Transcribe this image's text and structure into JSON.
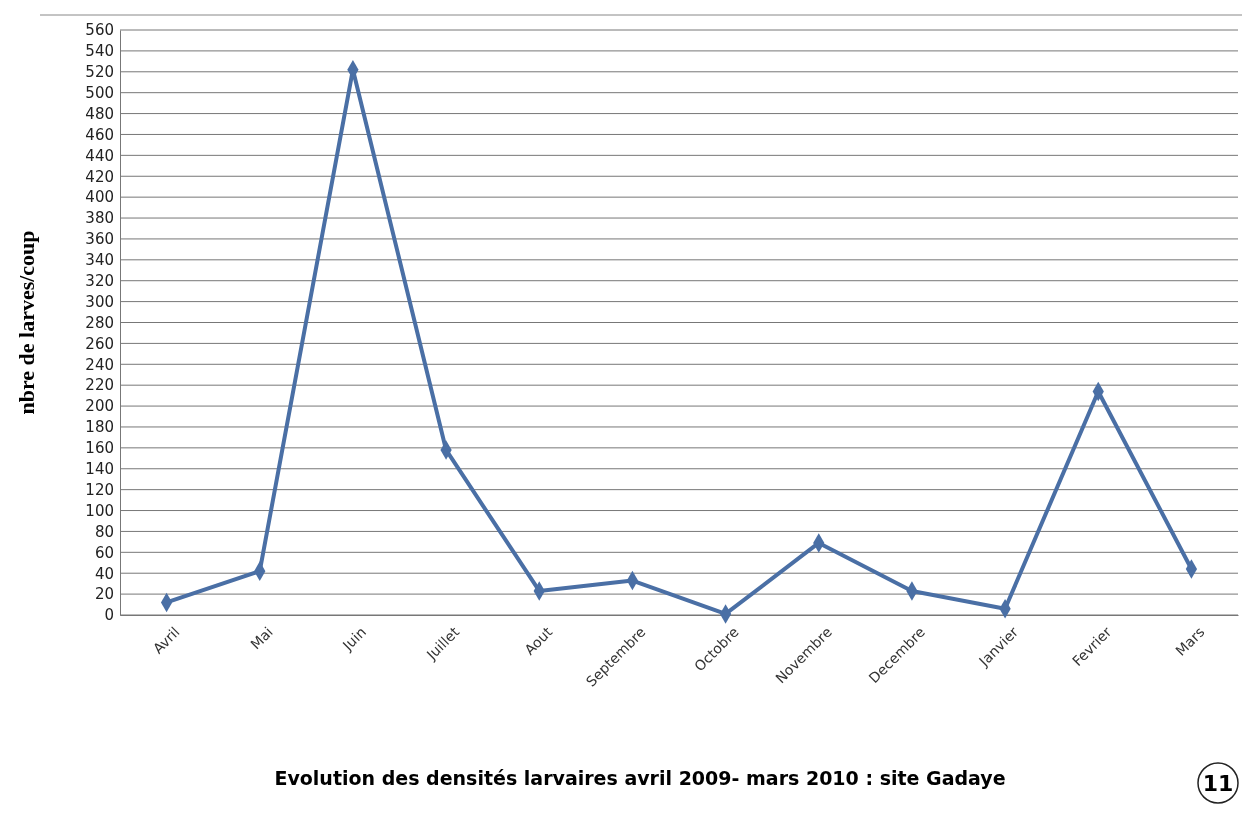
{
  "chart_data": {
    "type": "line",
    "title": "Evolution des densités larvaires avril 2009- mars 2010 : site Gadaye",
    "ylabel": "nbre de larves/coup",
    "categories": [
      "Avril",
      "Mai",
      "Juin",
      "Juillet",
      "Aout",
      "Septembre",
      "Octobre",
      "Novembre",
      "Decembre",
      "Janvier",
      "Fevrier",
      "Mars"
    ],
    "series": [
      {
        "color": "#4a6fa5",
        "values": [
          12,
          42,
          522,
          158,
          23,
          33,
          1,
          69,
          23,
          6,
          214,
          44
        ]
      }
    ],
    "ylim": [
      0,
      560
    ],
    "yticks": [
      0,
      20,
      40,
      60,
      80,
      100,
      120,
      140,
      160,
      180,
      200,
      220,
      240,
      260,
      280,
      300,
      320,
      340,
      360,
      380,
      400,
      420,
      440,
      460,
      480,
      500,
      520,
      540,
      560
    ],
    "grid": "y",
    "marker": "diamond",
    "line_style": "solid",
    "annotations": [
      "11"
    ]
  }
}
